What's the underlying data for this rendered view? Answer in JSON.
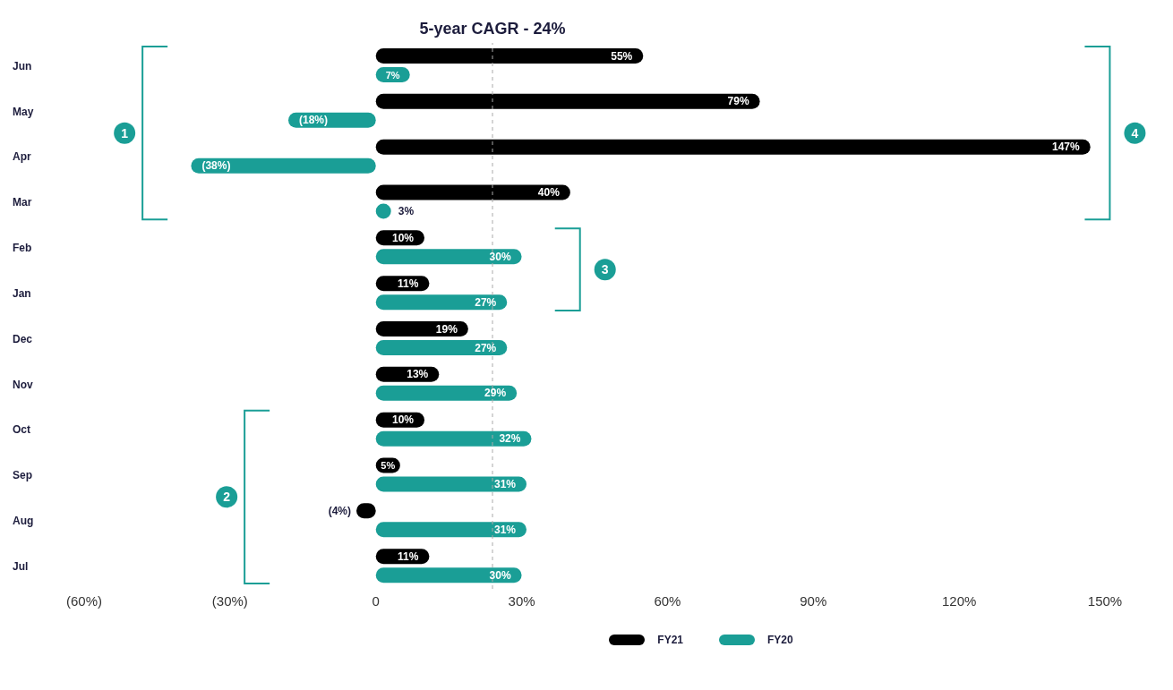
{
  "chart_data": {
    "type": "bar",
    "orientation": "horizontal",
    "categories": [
      "Jun",
      "May",
      "Apr",
      "Mar",
      "Feb",
      "Jan",
      "Dec",
      "Nov",
      "Oct",
      "Sep",
      "Aug",
      "Jul"
    ],
    "series": [
      {
        "name": "FY21",
        "color": "#000000",
        "values": [
          55,
          79,
          147,
          40,
          10,
          11,
          19,
          13,
          10,
          5,
          -4,
          11
        ],
        "value_labels": [
          "55%",
          "79%",
          "147%",
          "40%",
          "10%",
          "11%",
          "19%",
          "13%",
          "10%",
          "5%",
          "(4%)",
          "11%"
        ]
      },
      {
        "name": "FY20",
        "color": "#1a9e96",
        "values": [
          7,
          -18,
          -38,
          3,
          30,
          27,
          27,
          29,
          32,
          31,
          31,
          30
        ],
        "value_labels": [
          "7%",
          "(18%)",
          "(38%)",
          "3%",
          "30%",
          "27%",
          "27%",
          "29%",
          "32%",
          "31%",
          "31%",
          "30%"
        ]
      }
    ],
    "xlim": [
      -60,
      150
    ],
    "xticks": [
      {
        "value": -60,
        "label": "(60%)"
      },
      {
        "value": -30,
        "label": "(30%)"
      },
      0,
      {
        "value": 30,
        "label": "30%"
      },
      {
        "value": 60,
        "label": "60%"
      },
      {
        "value": 90,
        "label": "90%"
      },
      {
        "value": 120,
        "label": "120%"
      },
      {
        "value": 150,
        "label": "150%"
      }
    ],
    "ref_lines": [
      {
        "axis": "x",
        "value": 24,
        "label": "5-year CAGR - 24%",
        "line_style": "dashed",
        "color": "#aaaaaa"
      }
    ],
    "annotations": [
      "1",
      "2",
      "3",
      "4"
    ],
    "grid": false,
    "legend": "bottom"
  }
}
